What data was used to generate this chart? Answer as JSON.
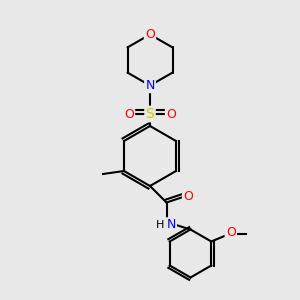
{
  "background_color": "#e8e8e8",
  "bond_color": "#000000",
  "atom_colors": {
    "O": "#ff0000",
    "N": "#0000ff",
    "S": "#cccc00",
    "C": "#000000",
    "H": "#000000"
  },
  "font_size": 9,
  "line_width": 1.5
}
